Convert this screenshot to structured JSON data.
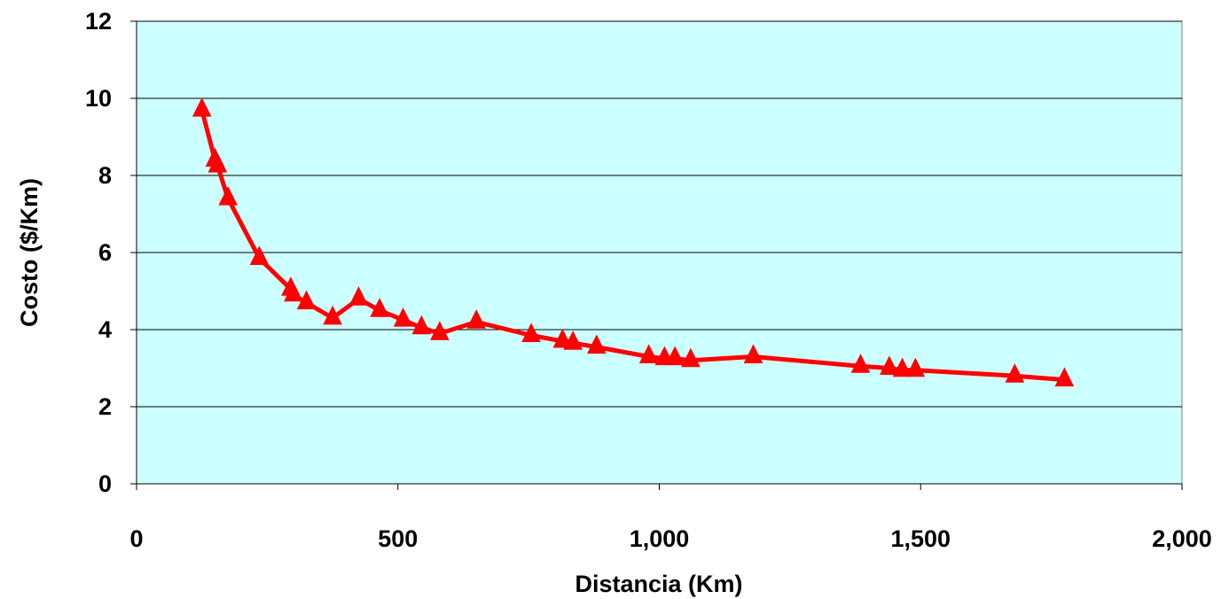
{
  "chart_data": {
    "type": "line",
    "title": "",
    "xlabel": "Distancia (Km)",
    "ylabel": "Costo ($/Km)",
    "xlim": [
      0,
      2000
    ],
    "ylim": [
      0,
      12
    ],
    "x_ticks": [
      0,
      500,
      1000,
      1500,
      2000
    ],
    "x_tick_labels": [
      "0",
      "500",
      "1,000",
      "1,500",
      "2,000"
    ],
    "y_ticks": [
      0,
      2,
      4,
      6,
      8,
      10,
      12
    ],
    "y_tick_labels": [
      "0",
      "2",
      "4",
      "6",
      "8",
      "10",
      "12"
    ],
    "grid": "horizontal",
    "legend": "none",
    "plot_background": "#CCFFFF",
    "series": [
      {
        "marker": "triangle",
        "color": "#FF0000",
        "x": [
          125,
          150,
          155,
          175,
          235,
          295,
          300,
          325,
          375,
          425,
          465,
          510,
          545,
          580,
          650,
          755,
          815,
          835,
          880,
          980,
          1010,
          1030,
          1060,
          1180,
          1385,
          1440,
          1465,
          1490,
          1680,
          1775
        ],
        "y": [
          9.7,
          8.4,
          8.25,
          7.4,
          5.85,
          5.05,
          4.9,
          4.7,
          4.3,
          4.8,
          4.5,
          4.25,
          4.05,
          3.9,
          4.2,
          3.85,
          3.7,
          3.65,
          3.55,
          3.3,
          3.25,
          3.25,
          3.2,
          3.3,
          3.05,
          3.0,
          2.95,
          2.95,
          2.8,
          2.7
        ]
      }
    ]
  }
}
